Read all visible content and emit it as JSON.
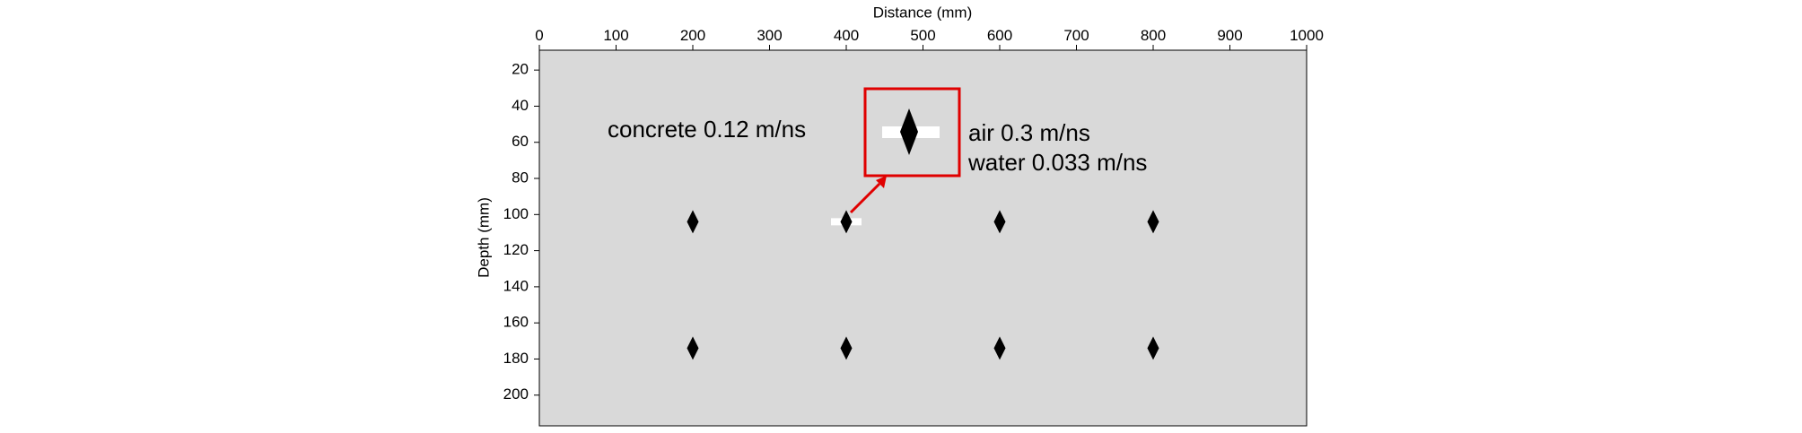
{
  "chart_data": {
    "type": "scatter",
    "x_label": "Distance (mm)",
    "y_label": "Depth (mm)",
    "x": [
      200,
      400,
      600,
      800,
      200,
      400,
      600,
      800
    ],
    "series": [
      {
        "color": "#000000",
        "values": [
          104,
          104,
          104,
          104,
          174,
          174,
          174,
          174
        ]
      }
    ],
    "xlim": [
      0,
      1000
    ],
    "xticks": [
      0,
      100,
      200,
      300,
      400,
      500,
      600,
      700,
      800,
      900,
      1000
    ],
    "ylim": [
      9,
      217
    ],
    "yticks": [
      20,
      40,
      60,
      80,
      100,
      120,
      140,
      160,
      180,
      200
    ],
    "y_reversed": true,
    "x_axis_position": "top",
    "background": "#d9d9d9",
    "annotations": [
      "concrete 0.12 m/ns",
      "air 0.3 m/ns",
      "water 0.033 m/ns"
    ]
  }
}
